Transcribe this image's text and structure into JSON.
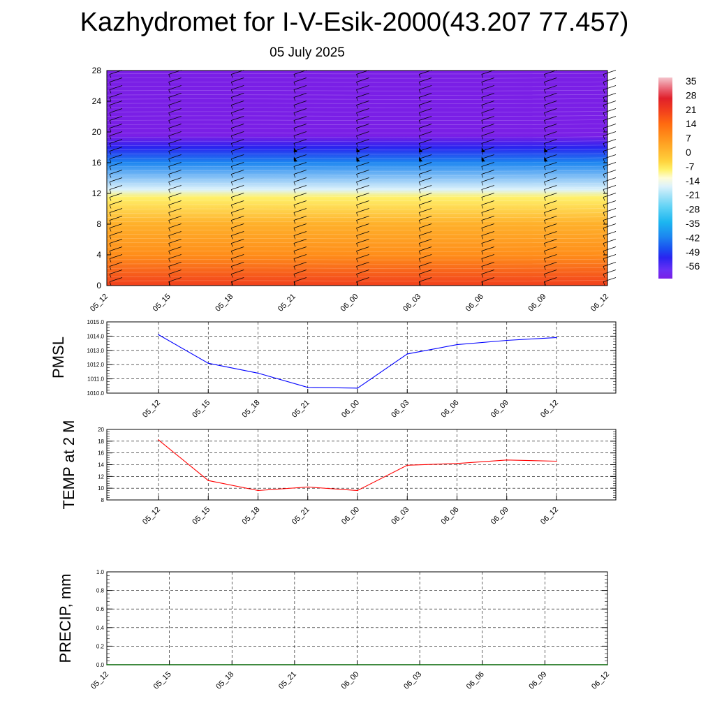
{
  "title": "Kazhydromet for I-V-Esik-2000(43.207 77.457)",
  "subtitle": "05 July 2025",
  "time_ticks": [
    "05_12",
    "05_15",
    "05_18",
    "05_21",
    "06_00",
    "06_03",
    "06_06",
    "06_09",
    "06_12"
  ],
  "chart_data": [
    {
      "type": "heatmap",
      "title": "",
      "xlabel": "",
      "ylabel": "",
      "x": [
        "05_12",
        "05_15",
        "05_18",
        "05_21",
        "06_00",
        "06_03",
        "06_06",
        "06_09",
        "06_12"
      ],
      "ylim": [
        0,
        28
      ],
      "yticks": [
        0,
        4,
        8,
        12,
        16,
        20,
        24,
        28
      ],
      "colorbar": {
        "labels": [
          "35",
          "28",
          "21",
          "14",
          "7",
          "0",
          "-7",
          "-14",
          "-21",
          "-28",
          "-35",
          "-42",
          "-49",
          "-56"
        ],
        "range": [
          -60,
          36
        ]
      },
      "temperature_profile": [
        {
          "height": 0,
          "value": 21
        },
        {
          "height": 4,
          "value": 12
        },
        {
          "height": 8,
          "value": 5
        },
        {
          "height": 11.5,
          "value": -7
        },
        {
          "height": 12.5,
          "value": -15
        },
        {
          "height": 16,
          "value": -35
        },
        {
          "height": 18,
          "value": -49
        },
        {
          "height": 19.5,
          "value": -58
        },
        {
          "height": 22,
          "value": -57
        },
        {
          "height": 28,
          "value": -57
        }
      ],
      "wind_barb_columns": [
        "05_12",
        "05_15",
        "05_18",
        "05_21",
        "06_00",
        "06_03",
        "06_06",
        "06_09",
        "06_12"
      ]
    },
    {
      "type": "line",
      "ylabel": "PMSL",
      "ylim": [
        1010,
        1015
      ],
      "yticks": [
        "1010.0",
        "1011.0",
        "1012.0",
        "1013.0",
        "1014.0",
        "1015.0"
      ],
      "categories": [
        "05_12",
        "05_15",
        "05_18",
        "05_21",
        "06_00",
        "06_03",
        "06_06",
        "06_09",
        "06_12"
      ],
      "series": [
        {
          "values": [
            1014.1,
            1012.1,
            1011.4,
            1010.4,
            1010.35,
            1012.75,
            1013.4,
            1013.7,
            1013.9
          ],
          "color": "#0000ff"
        }
      ],
      "grid": true
    },
    {
      "type": "line",
      "ylabel": "TEMP at 2 M",
      "ylim": [
        8,
        20
      ],
      "yticks": [
        "8",
        "10",
        "12",
        "14",
        "16",
        "18",
        "20"
      ],
      "categories": [
        "05_12",
        "05_15",
        "05_18",
        "05_21",
        "06_00",
        "06_03",
        "06_06",
        "06_09",
        "06_12"
      ],
      "series": [
        {
          "values": [
            18.2,
            11.3,
            9.6,
            10.2,
            9.6,
            13.9,
            14.2,
            14.8,
            14.6
          ],
          "color": "#ff0000"
        }
      ],
      "grid": true
    },
    {
      "type": "line",
      "ylabel": "PRECIP, mm",
      "ylim": [
        0,
        1
      ],
      "yticks": [
        "0.0",
        "0.2",
        "0.4",
        "0.6",
        "0.8",
        "1.0"
      ],
      "categories": [
        "05_12",
        "05_15",
        "05_18",
        "05_21",
        "06_00",
        "06_03",
        "06_06",
        "06_09",
        "06_12"
      ],
      "series": [
        {
          "values": [
            0,
            0,
            0,
            0,
            0,
            0,
            0,
            0,
            0
          ],
          "color": "#006400"
        }
      ],
      "grid": true
    }
  ]
}
